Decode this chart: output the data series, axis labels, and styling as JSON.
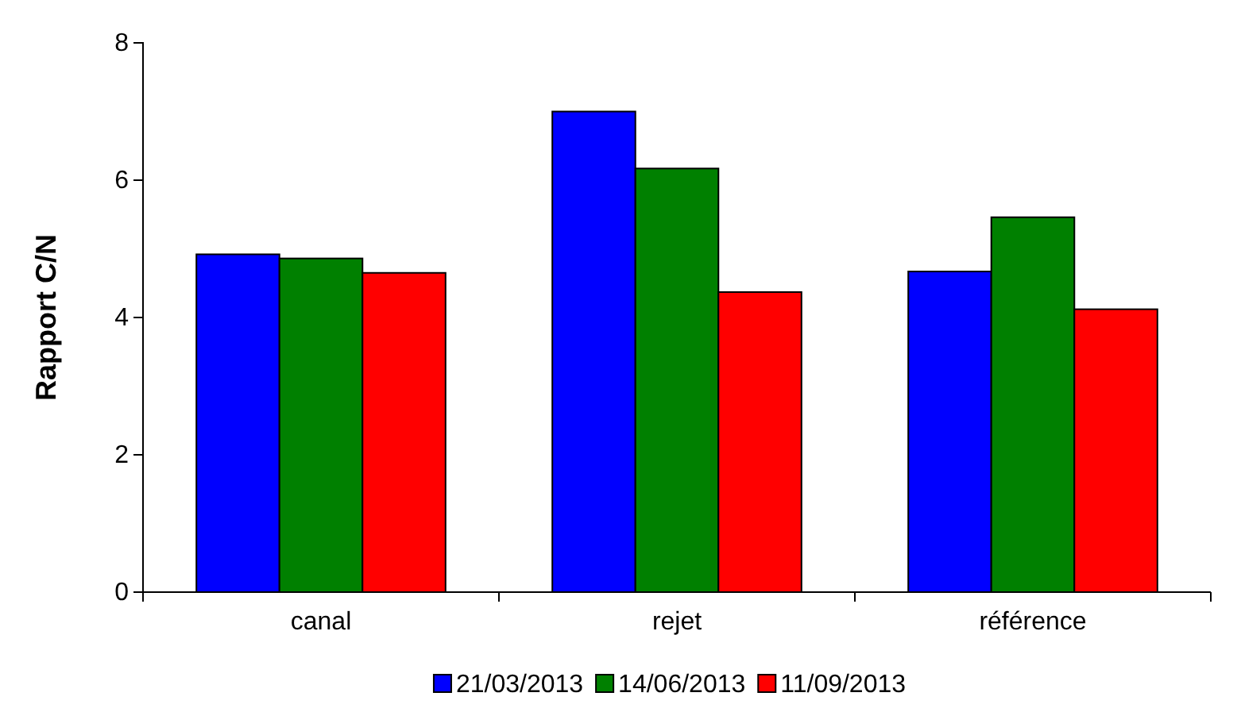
{
  "chart_data": {
    "type": "bar",
    "ylabel": "Rapport C/N",
    "categories": [
      "canal",
      "rejet",
      "référence"
    ],
    "series": [
      {
        "name": "21/03/2013",
        "color": "#0000ff",
        "values": [
          4.92,
          7.0,
          4.67
        ]
      },
      {
        "name": "14/06/2013",
        "color": "#008000",
        "values": [
          4.86,
          6.17,
          5.46
        ]
      },
      {
        "name": "11/09/2013",
        "color": "#ff0000",
        "values": [
          4.65,
          4.37,
          4.12
        ]
      }
    ],
    "ylim": [
      0,
      8
    ],
    "yticks": [
      0,
      2,
      4,
      6,
      8
    ],
    "grid": false,
    "legend": "bottom"
  }
}
